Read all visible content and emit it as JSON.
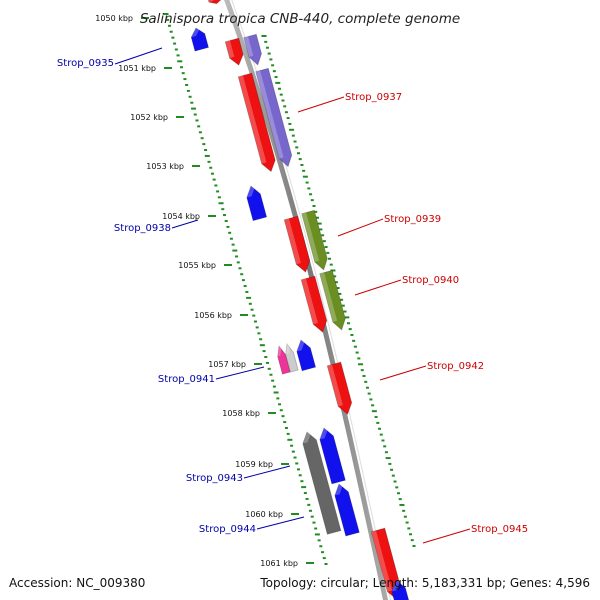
{
  "title": "Salinispora tropica CNB-440, complete genome",
  "footer": {
    "accession": "Accession: NC_009380",
    "summary": "Topology: circular; Length: 5,183,331 bp; Genes: 4,596"
  },
  "scale": {
    "tick_labels": [
      "1050 kbp",
      "1051 kbp",
      "1052 kbp",
      "1053 kbp",
      "1054 kbp",
      "1055 kbp",
      "1056 kbp",
      "1057 kbp",
      "1058 kbp",
      "1059 kbp",
      "1060 kbp",
      "1061 kbp"
    ]
  },
  "colors": {
    "forward_label": "#cc0000",
    "reverse_label": "#0000aa",
    "red": "#ee1111",
    "blue": "#1111ee",
    "purple": "#7766cc",
    "olive": "#6b8e23",
    "gray": "#666666",
    "tick_green": "#228B22"
  },
  "gene_labels": [
    {
      "name": "Strop_0935",
      "strand": "reverse"
    },
    {
      "name": "Strop_0937",
      "strand": "forward"
    },
    {
      "name": "Strop_0938",
      "strand": "reverse"
    },
    {
      "name": "Strop_0939",
      "strand": "forward"
    },
    {
      "name": "Strop_0940",
      "strand": "forward"
    },
    {
      "name": "Strop_0941",
      "strand": "reverse"
    },
    {
      "name": "Strop_0942",
      "strand": "forward"
    },
    {
      "name": "Strop_0943",
      "strand": "reverse"
    },
    {
      "name": "Strop_0944",
      "strand": "reverse"
    },
    {
      "name": "Strop_0945",
      "strand": "forward"
    }
  ]
}
